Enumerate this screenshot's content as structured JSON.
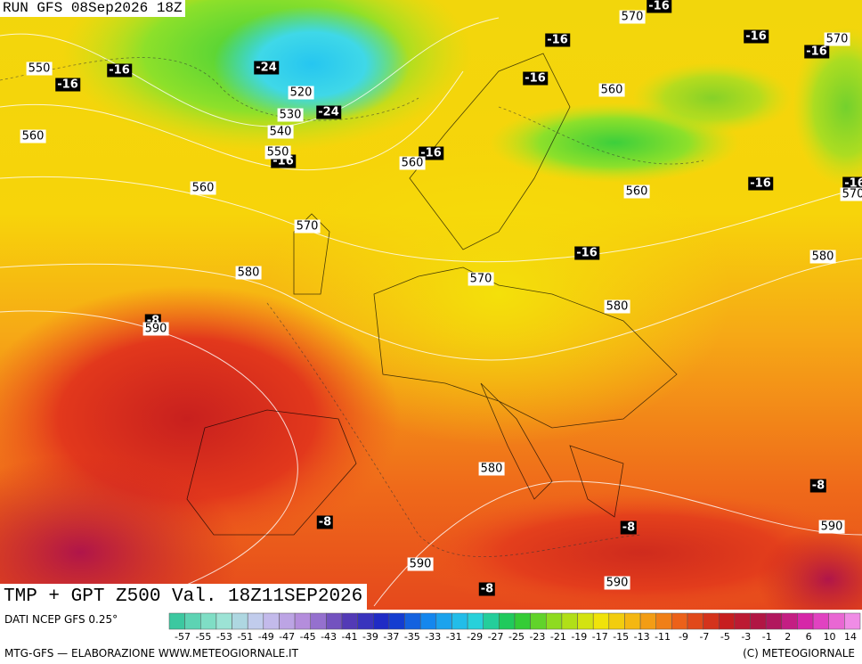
{
  "header": {
    "run": "RUN GFS 08Sep2026 18Z"
  },
  "map": {
    "labels": [
      "-16",
      "-16",
      "-24",
      "-24",
      "-16",
      "-16",
      "-16",
      "-16",
      "-16",
      "-16",
      "-16",
      "-16",
      "-16",
      "-16",
      "-8",
      "-8",
      "-8",
      "-8",
      "-8",
      "550",
      "560",
      "520",
      "530",
      "540",
      "550",
      "560",
      "560",
      "570",
      "580",
      "590",
      "570",
      "570",
      "560",
      "560",
      "570",
      "580",
      "570",
      "580",
      "580",
      "590",
      "590",
      "590"
    ]
  },
  "title": "TMP + GPT Z500 Val. 18Z11SEP2026",
  "footer": {
    "source": "DATI NCEP GFS 0.25°",
    "credit": "MTG-GFS — ELABORAZIONE WWW.METEOGIORNALE.IT",
    "copyright": "(C) METEOGIORNALE"
  },
  "colorbar": {
    "labels": [
      "-57",
      "-55",
      "-53",
      "-51",
      "-49",
      "-47",
      "-45",
      "-43",
      "-41",
      "-39",
      "-37",
      "-35",
      "-33",
      "-31",
      "-29",
      "-27",
      "-25",
      "-23",
      "-21",
      "-19",
      "-17",
      "-15",
      "-13",
      "-11",
      "-9",
      "-7",
      "-5",
      "-3",
      "-1",
      "2",
      "6",
      "10",
      "14"
    ]
  }
}
